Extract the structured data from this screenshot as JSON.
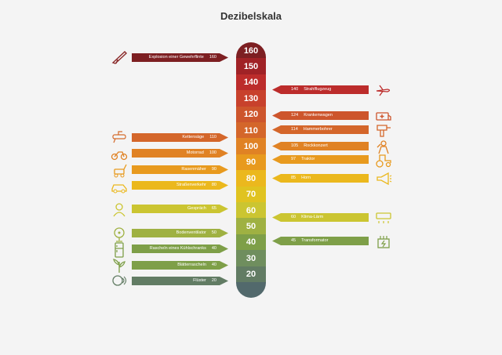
{
  "title": "Dezibelskala",
  "scale": [
    {
      "label": "160",
      "color": "#7d1f22"
    },
    {
      "label": "150",
      "color": "#a02226"
    },
    {
      "label": "140",
      "color": "#bc2c2b"
    },
    {
      "label": "130",
      "color": "#c8412c"
    },
    {
      "label": "120",
      "color": "#cd552c"
    },
    {
      "label": "110",
      "color": "#d4662a"
    },
    {
      "label": "100",
      "color": "#e08224"
    },
    {
      "label": "90",
      "color": "#e89a1e"
    },
    {
      "label": "80",
      "color": "#ebb81d"
    },
    {
      "label": "70",
      "color": "#e0c320"
    },
    {
      "label": "60",
      "color": "#cbc531"
    },
    {
      "label": "50",
      "color": "#9fb142"
    },
    {
      "label": "40",
      "color": "#7e9f48"
    },
    {
      "label": "30",
      "color": "#6f8e5e"
    },
    {
      "label": "20",
      "color": "#627c64"
    },
    {
      "label": "",
      "color": "#52696c"
    }
  ],
  "left": [
    {
      "name": "Explosion einer Gewehrflinte",
      "value": "160",
      "color": "#7d1f22",
      "icon": "rifle-icon"
    },
    {
      "name": "Kettensäge",
      "value": "110",
      "color": "#d4662a",
      "icon": "chainsaw-icon"
    },
    {
      "name": "Motorrad",
      "value": "100",
      "color": "#e08224",
      "icon": "motorcycle-icon"
    },
    {
      "name": "Rasenmäher",
      "value": "90",
      "color": "#e89a1e",
      "icon": "lawnmower-icon"
    },
    {
      "name": "Straßenverkehr",
      "value": "80",
      "color": "#ebb81d",
      "icon": "car-icon"
    },
    {
      "name": "Gespräch",
      "value": "65",
      "color": "#cbc531",
      "icon": "conversation-icon"
    },
    {
      "name": "Bodenventilator",
      "value": "50",
      "color": "#9fb142",
      "icon": "fan-icon"
    },
    {
      "name": "Rascheln eines Kühlschranks",
      "value": "40",
      "color": "#7e9f48",
      "icon": "fridge-icon"
    },
    {
      "name": "Blätterrascheln",
      "value": "40",
      "color": "#7e9f48",
      "icon": "leaves-icon"
    },
    {
      "name": "Flüster",
      "value": "20",
      "color": "#627c64",
      "icon": "whisper-icon"
    }
  ],
  "right": [
    {
      "name": "Strahlflugzeug",
      "value": "140",
      "color": "#bc2c2b",
      "icon": "jet-icon"
    },
    {
      "name": "Krankenwagen",
      "value": "124",
      "color": "#cd552c",
      "icon": "ambulance-icon"
    },
    {
      "name": "Hammerbohrer",
      "value": "114",
      "color": "#d4662a",
      "icon": "hammer-drill-icon"
    },
    {
      "name": "Rockkonzert",
      "value": "105",
      "color": "#e08224",
      "icon": "rock-concert-icon"
    },
    {
      "name": "Traktor",
      "value": "97",
      "color": "#e89a1e",
      "icon": "tractor-icon"
    },
    {
      "name": "Horn",
      "value": "85",
      "color": "#ebb81d",
      "icon": "horn-icon"
    },
    {
      "name": "Klima-Lärm",
      "value": "60",
      "color": "#cbc531",
      "icon": "air-conditioner-icon"
    },
    {
      "name": "Transformator",
      "value": "45",
      "color": "#7e9f48",
      "icon": "transformer-icon"
    }
  ]
}
